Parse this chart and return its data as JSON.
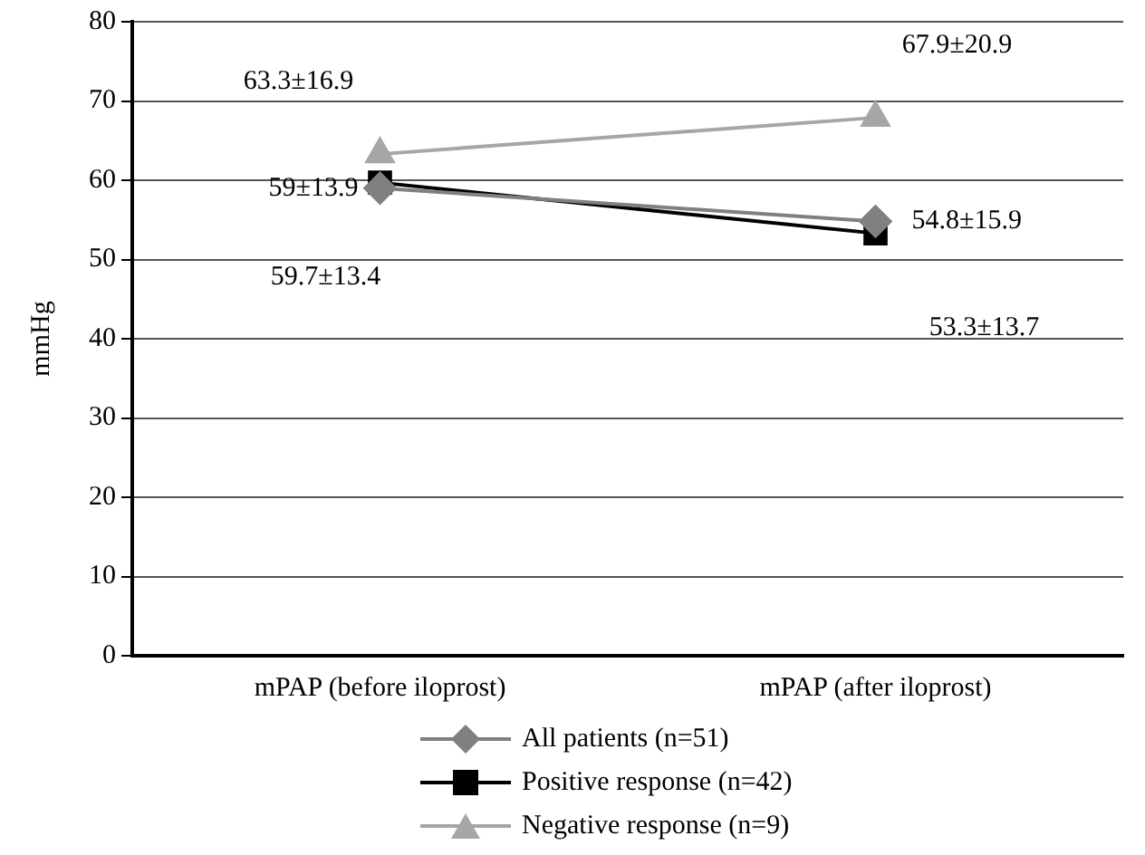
{
  "chart_data": {
    "type": "line",
    "ylabel": "mmHg",
    "categories": [
      "mPAP (before iloprost)",
      "mPAP (after iloprost)"
    ],
    "ylim": [
      0,
      80
    ],
    "yticks": [
      0,
      10,
      20,
      30,
      40,
      50,
      60,
      70,
      80
    ],
    "grid": "y",
    "legend": "bottom",
    "series": [
      {
        "name": "All patients (n=51)",
        "color": "#808080",
        "marker": "diamond",
        "values": [
          59,
          54.8
        ],
        "value_labels": [
          "59±13.9",
          "54.8±15.9"
        ]
      },
      {
        "name": "Positive response (n=42)",
        "color": "#000000",
        "marker": "square",
        "values": [
          59.7,
          53.3
        ],
        "value_labels": [
          "59.7±13.4",
          "53.3±13.7"
        ]
      },
      {
        "name": "Negative response (n=9)",
        "color": "#a6a6a6",
        "marker": "triangle",
        "values": [
          63.3,
          67.9
        ],
        "value_labels": [
          "63.3±16.9",
          "67.9±20.9"
        ]
      }
    ]
  }
}
